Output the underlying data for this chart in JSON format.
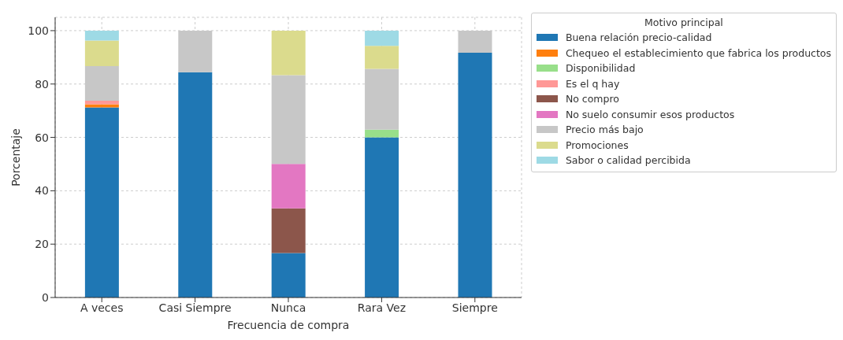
{
  "chart_data": {
    "type": "bar",
    "stacked": true,
    "xlabel": "Frecuencia de compra",
    "ylabel": "Porcentaje",
    "legend_title": "Motivo principal",
    "categories": [
      "A veces",
      "Casi Siempre",
      "Nunca",
      "Rara Vez",
      "Siempre"
    ],
    "series": [
      {
        "name": "Buena relación precio-calidad",
        "color": "#1f77b4",
        "values": [
          71.2,
          84.4,
          16.7,
          60.0,
          91.7
        ]
      },
      {
        "name": "Chequeo el establecimiento que fabrica los productos",
        "color": "#ff7f0e",
        "values": [
          1.2,
          0,
          0,
          0,
          0
        ]
      },
      {
        "name": "Disponibilidad",
        "color": "#98df8a",
        "values": [
          0,
          0,
          0,
          2.9,
          0
        ]
      },
      {
        "name": "Es el q hay",
        "color": "#ff9896",
        "values": [
          1.3,
          0,
          0,
          0,
          0
        ]
      },
      {
        "name": "No compro",
        "color": "#8c564b",
        "values": [
          0,
          0,
          16.7,
          0,
          0
        ]
      },
      {
        "name": "No suelo consumir esos productos",
        "color": "#e377c2",
        "values": [
          0,
          0,
          16.7,
          0,
          0
        ]
      },
      {
        "name": "Precio más bajo",
        "color": "#c7c7c7",
        "values": [
          13.0,
          15.6,
          33.2,
          22.8,
          8.3
        ]
      },
      {
        "name": "Promociones",
        "color": "#dbdb8d",
        "values": [
          9.6,
          0,
          16.7,
          8.6,
          0
        ]
      },
      {
        "name": "Sabor o calidad percibida",
        "color": "#9edae5",
        "values": [
          3.7,
          0,
          0,
          5.7,
          0
        ]
      }
    ],
    "ylim": [
      0,
      105
    ],
    "yticks": [
      0,
      20,
      40,
      60,
      80,
      100
    ],
    "grid": true,
    "legend": "top right"
  }
}
